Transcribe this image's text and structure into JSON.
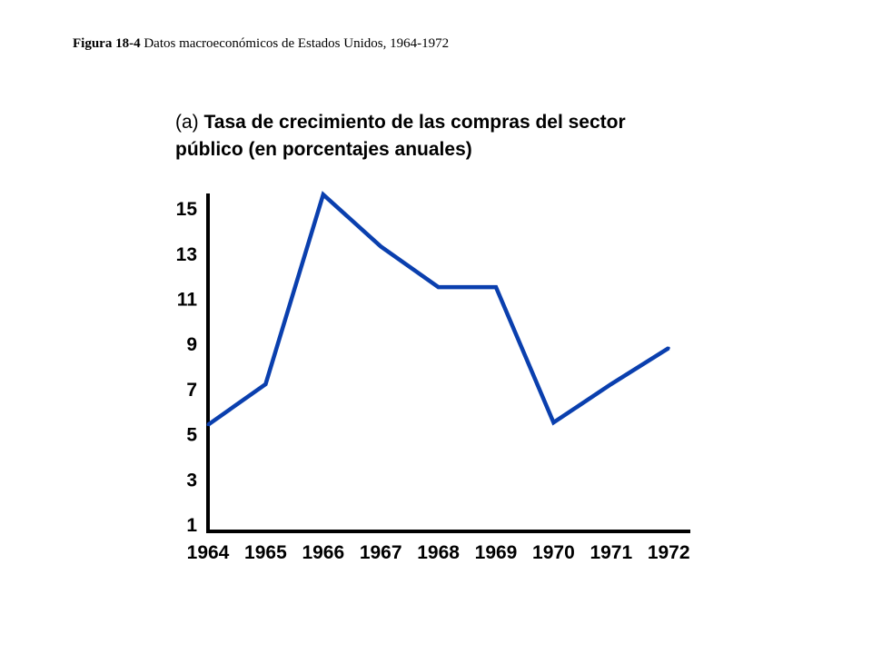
{
  "caption": {
    "label": "Figura 18-4",
    "text": "Datos macroeconómicos de Estados Unidos, 1964-1972"
  },
  "chart_data": {
    "type": "line",
    "title_prefix": "(a)",
    "title": "Tasa de crecimiento de las compras del sector público (en porcentajes anuales)",
    "xlabel": "",
    "ylabel": "",
    "categories": [
      "1964",
      "1965",
      "1966",
      "1967",
      "1968",
      "1969",
      "1970",
      "1971",
      "1972"
    ],
    "y_ticks": [
      1,
      3,
      5,
      7,
      9,
      11,
      13,
      15
    ],
    "ylim": [
      0.5,
      15.5
    ],
    "grid": false,
    "legend": "none",
    "line_color": "#0a3fae",
    "axis_color": "#000000",
    "series": [
      {
        "points": [
          {
            "x": "1964",
            "y": 5.4
          },
          {
            "x": "1965",
            "y": 7.2
          },
          {
            "x": "1966",
            "y": 15.6
          },
          {
            "x": "1967",
            "y": 13.3
          },
          {
            "x": "1968",
            "y": 11.5
          },
          {
            "x": "1969",
            "y": 11.5
          },
          {
            "x": "1970",
            "y": 5.5
          },
          {
            "x": "1971",
            "y": 7.2
          },
          {
            "x": "1972",
            "y": 8.8
          }
        ]
      }
    ]
  }
}
